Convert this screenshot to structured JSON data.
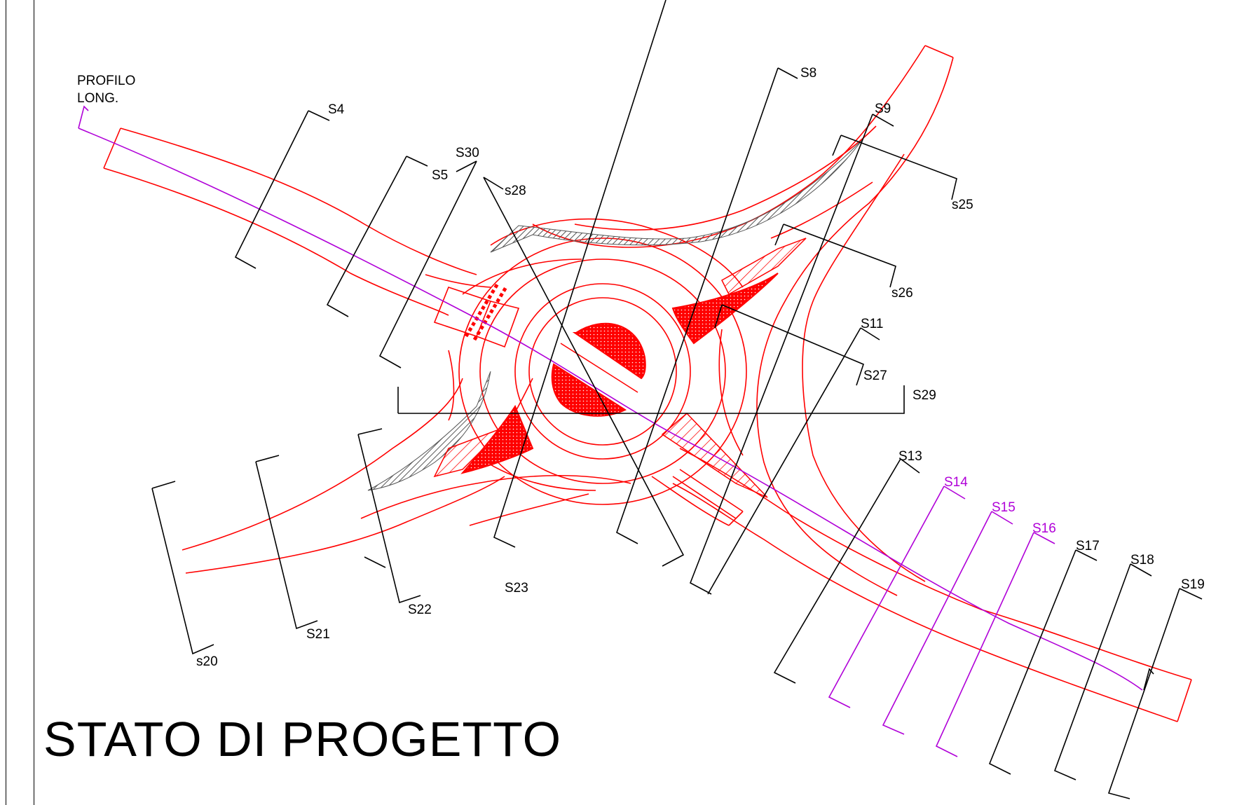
{
  "title": "STATO DI PROGETTO",
  "profile_label": {
    "line1": "PROFILO",
    "line2": "LONG."
  },
  "colors": {
    "road": "#ff0000",
    "section": "#000000",
    "highlight_section": "#b000d8",
    "hatch_fill": "#888888"
  },
  "sections": [
    {
      "id": "S4",
      "label": "S4"
    },
    {
      "id": "S5",
      "label": "S5"
    },
    {
      "id": "S8",
      "label": "S8"
    },
    {
      "id": "S9",
      "label": "S9"
    },
    {
      "id": "S11",
      "label": "S11"
    },
    {
      "id": "S13",
      "label": "S13"
    },
    {
      "id": "S14",
      "label": "S14",
      "highlight": true
    },
    {
      "id": "S15",
      "label": "S15",
      "highlight": true
    },
    {
      "id": "S16",
      "label": "S16",
      "highlight": true
    },
    {
      "id": "S17",
      "label": "S17"
    },
    {
      "id": "S18",
      "label": "S18"
    },
    {
      "id": "S19",
      "label": "S19"
    },
    {
      "id": "s20",
      "label": "s20"
    },
    {
      "id": "S21",
      "label": "S21"
    },
    {
      "id": "S22",
      "label": "S22"
    },
    {
      "id": "S23",
      "label": "S23"
    },
    {
      "id": "s25",
      "label": "s25"
    },
    {
      "id": "s26",
      "label": "s26"
    },
    {
      "id": "S27",
      "label": "S27"
    },
    {
      "id": "s28",
      "label": "s28"
    },
    {
      "id": "S29",
      "label": "S29"
    },
    {
      "id": "S30",
      "label": "S30"
    }
  ]
}
